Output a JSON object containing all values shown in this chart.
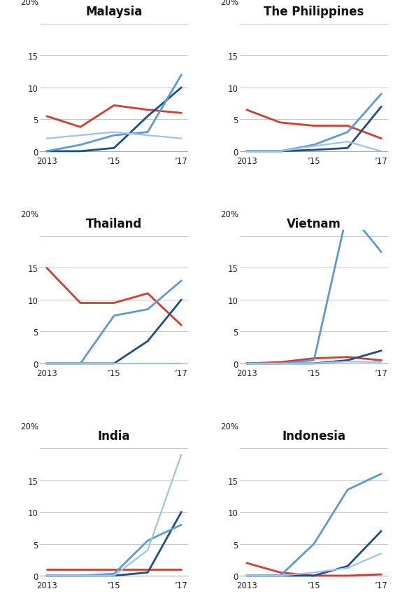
{
  "years": [
    2013,
    2014,
    2015,
    2016,
    2017
  ],
  "charts": [
    {
      "title": "Malaysia",
      "lines": [
        {
          "color": "#d63b2f",
          "lw": 2.0,
          "y": [
            5.5,
            3.8,
            7.2,
            6.5,
            6.0
          ]
        },
        {
          "color": "#1b4f8a",
          "lw": 2.0,
          "y": [
            0.0,
            0.0,
            0.5,
            5.5,
            10.0
          ]
        },
        {
          "color": "#5b9bd5",
          "lw": 2.0,
          "y": [
            0.0,
            1.0,
            2.5,
            3.0,
            12.0
          ]
        },
        {
          "color": "#9dc3e6",
          "lw": 1.6,
          "y": [
            2.0,
            2.5,
            3.0,
            2.5,
            2.0
          ]
        }
      ]
    },
    {
      "title": "The Philippines",
      "lines": [
        {
          "color": "#d63b2f",
          "lw": 2.0,
          "y": [
            6.5,
            4.5,
            4.0,
            4.0,
            2.0
          ]
        },
        {
          "color": "#1b4f8a",
          "lw": 2.0,
          "y": [
            0.0,
            0.0,
            0.2,
            0.5,
            7.0
          ]
        },
        {
          "color": "#5b9bd5",
          "lw": 2.0,
          "y": [
            0.0,
            0.0,
            1.0,
            3.0,
            9.0
          ]
        },
        {
          "color": "#9dc3e6",
          "lw": 1.6,
          "y": [
            0.0,
            0.0,
            0.8,
            1.5,
            0.0
          ]
        }
      ]
    },
    {
      "title": "Thailand",
      "lines": [
        {
          "color": "#d63b2f",
          "lw": 2.0,
          "y": [
            15.0,
            9.5,
            9.5,
            11.0,
            6.0
          ]
        },
        {
          "color": "#1b4f8a",
          "lw": 2.0,
          "y": [
            0.0,
            0.0,
            0.0,
            3.5,
            10.0
          ]
        },
        {
          "color": "#5b9bd5",
          "lw": 2.0,
          "y": [
            0.0,
            0.0,
            7.5,
            8.5,
            13.0
          ]
        },
        {
          "color": "#9dc3e6",
          "lw": 1.6,
          "y": [
            0.0,
            0.0,
            0.0,
            0.0,
            0.0
          ]
        }
      ]
    },
    {
      "title": "Vietnam",
      "lines": [
        {
          "color": "#d63b2f",
          "lw": 2.0,
          "y": [
            0.0,
            0.2,
            0.8,
            1.0,
            0.5
          ]
        },
        {
          "color": "#1b4f8a",
          "lw": 2.0,
          "y": [
            0.0,
            0.0,
            0.0,
            0.5,
            2.0
          ]
        },
        {
          "color": "#5b9bd5",
          "lw": 2.0,
          "y": [
            0.0,
            0.0,
            0.5,
            24.0,
            17.5
          ]
        },
        {
          "color": "#9dc3e6",
          "lw": 1.6,
          "y": [
            0.0,
            0.0,
            0.0,
            0.3,
            0.2
          ]
        }
      ]
    },
    {
      "title": "India",
      "lines": [
        {
          "color": "#d63b2f",
          "lw": 2.0,
          "y": [
            1.0,
            1.0,
            1.0,
            1.0,
            1.0
          ]
        },
        {
          "color": "#1b4f8a",
          "lw": 2.0,
          "y": [
            0.0,
            0.0,
            0.0,
            0.5,
            10.0
          ]
        },
        {
          "color": "#5b9bd5",
          "lw": 2.0,
          "y": [
            0.0,
            0.0,
            0.3,
            5.5,
            8.0
          ]
        },
        {
          "color": "#9dc3e6",
          "lw": 1.6,
          "y": [
            0.0,
            0.0,
            0.0,
            4.0,
            19.0
          ]
        }
      ]
    },
    {
      "title": "Indonesia",
      "lines": [
        {
          "color": "#d63b2f",
          "lw": 2.0,
          "y": [
            2.0,
            0.5,
            0.0,
            0.0,
            0.2
          ]
        },
        {
          "color": "#1b4f8a",
          "lw": 2.0,
          "y": [
            0.0,
            0.0,
            0.0,
            1.5,
            7.0
          ]
        },
        {
          "color": "#5b9bd5",
          "lw": 2.0,
          "y": [
            0.0,
            0.0,
            5.0,
            13.5,
            16.0
          ]
        },
        {
          "color": "#9dc3e6",
          "lw": 1.6,
          "y": [
            0.0,
            0.0,
            0.5,
            1.2,
            3.5
          ]
        }
      ]
    }
  ],
  "ylim": [
    -0.5,
    21
  ],
  "yticks": [
    0,
    5,
    10,
    15
  ],
  "yline_ticks": [
    0,
    5,
    10,
    15,
    20
  ],
  "xtick_positions": [
    2013,
    2015,
    2017
  ],
  "xtick_labels": [
    "2013",
    "’15",
    "’17"
  ],
  "bg_color": "#ffffff",
  "grid_color": "#c8c8c8",
  "axis_color": "#aaaaaa",
  "title_fontsize": 12,
  "tick_fontsize": 8.5,
  "label_20pct": "20%"
}
